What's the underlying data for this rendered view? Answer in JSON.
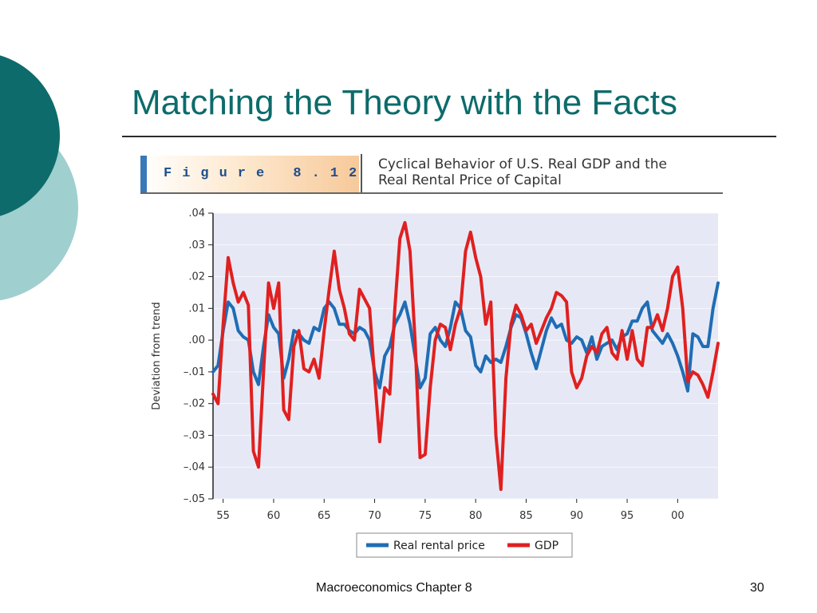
{
  "slide": {
    "title": "Matching the Theory with the Facts",
    "footer": "Macroeconomics Chapter 8",
    "page_number": "30"
  },
  "figure": {
    "label": "Figure 8.12",
    "caption_line1": "Cyclical Behavior of U.S. Real GDP and the",
    "caption_line2": "Real Rental Price of Capital"
  },
  "colors": {
    "title": "#0d6b6b",
    "circle_dark": "#0d6b6b",
    "circle_light": "#9fcfcf",
    "plot_bg": "#e6e9f5",
    "rental": "#1f6db5",
    "gdp": "#e02020"
  },
  "chart_data": {
    "type": "line",
    "ylabel": "Deviation from trend",
    "ylim": [
      -0.05,
      0.04
    ],
    "xlim": [
      1954,
      2004
    ],
    "yticks": [
      {
        "v": 0.04,
        "label": ".04"
      },
      {
        "v": 0.03,
        "label": ".03"
      },
      {
        "v": 0.02,
        "label": ".02"
      },
      {
        "v": 0.01,
        "label": ".01"
      },
      {
        "v": 0.0,
        "label": ".00"
      },
      {
        "v": -0.01,
        "label": "–.01"
      },
      {
        "v": -0.02,
        "label": "–.02"
      },
      {
        "v": -0.03,
        "label": "–.03"
      },
      {
        "v": -0.04,
        "label": "–.04"
      },
      {
        "v": -0.05,
        "label": "–.05"
      }
    ],
    "xticks": [
      {
        "v": 1955,
        "label": "55"
      },
      {
        "v": 1960,
        "label": "60"
      },
      {
        "v": 1965,
        "label": "65"
      },
      {
        "v": 1970,
        "label": "70"
      },
      {
        "v": 1975,
        "label": "75"
      },
      {
        "v": 1980,
        "label": "80"
      },
      {
        "v": 1985,
        "label": "85"
      },
      {
        "v": 1990,
        "label": "90"
      },
      {
        "v": 1995,
        "label": "95"
      },
      {
        "v": 2000,
        "label": "00"
      }
    ],
    "legend_position": "bottom",
    "series": [
      {
        "name": "Real rental price",
        "x": [
          1954.0,
          1954.5,
          1955.0,
          1955.5,
          1956.0,
          1956.5,
          1957.0,
          1957.5,
          1958.0,
          1958.5,
          1959.0,
          1959.5,
          1960.0,
          1960.5,
          1961.0,
          1961.5,
          1962.0,
          1962.5,
          1963.0,
          1963.5,
          1964.0,
          1964.5,
          1965.0,
          1965.5,
          1966.0,
          1966.5,
          1967.0,
          1967.5,
          1968.0,
          1968.5,
          1969.0,
          1969.5,
          1970.0,
          1970.5,
          1971.0,
          1971.5,
          1972.0,
          1972.5,
          1973.0,
          1973.5,
          1974.0,
          1974.5,
          1975.0,
          1975.5,
          1976.0,
          1976.5,
          1977.0,
          1977.5,
          1978.0,
          1978.5,
          1979.0,
          1979.5,
          1980.0,
          1980.5,
          1981.0,
          1981.5,
          1982.0,
          1982.5,
          1983.0,
          1983.5,
          1984.0,
          1984.5,
          1985.0,
          1985.5,
          1986.0,
          1986.5,
          1987.0,
          1987.5,
          1988.0,
          1988.5,
          1989.0,
          1989.5,
          1990.0,
          1990.5,
          1991.0,
          1991.5,
          1992.0,
          1992.5,
          1993.0,
          1993.5,
          1994.0,
          1994.5,
          1995.0,
          1995.5,
          1996.0,
          1996.5,
          1997.0,
          1997.5,
          1998.0,
          1998.5,
          1999.0,
          1999.5,
          2000.0,
          2000.5,
          2001.0,
          2001.5,
          2002.0,
          2002.5,
          2003.0,
          2003.5,
          2004.0
        ],
        "y": [
          -0.01,
          -0.008,
          0.003,
          0.012,
          0.01,
          0.003,
          0.001,
          0.0,
          -0.01,
          -0.014,
          -0.002,
          0.008,
          0.004,
          0.002,
          -0.012,
          -0.006,
          0.003,
          0.002,
          0.0,
          -0.001,
          0.004,
          0.003,
          0.01,
          0.012,
          0.01,
          0.005,
          0.005,
          0.003,
          0.002,
          0.004,
          0.003,
          0.0,
          -0.01,
          -0.015,
          -0.005,
          -0.002,
          0.005,
          0.008,
          0.012,
          0.005,
          -0.005,
          -0.015,
          -0.012,
          0.002,
          0.004,
          0.0,
          -0.002,
          0.004,
          0.012,
          0.01,
          0.003,
          0.001,
          -0.008,
          -0.01,
          -0.005,
          -0.007,
          -0.006,
          -0.007,
          -0.002,
          0.004,
          0.008,
          0.007,
          0.002,
          -0.004,
          -0.009,
          -0.003,
          0.003,
          0.007,
          0.004,
          0.005,
          0.0,
          -0.001,
          0.001,
          0.0,
          -0.004,
          0.001,
          -0.006,
          -0.002,
          -0.001,
          0.0,
          -0.003,
          0.001,
          0.002,
          0.006,
          0.006,
          0.01,
          0.012,
          0.003,
          0.001,
          -0.001,
          0.002,
          -0.001,
          -0.005,
          -0.01,
          -0.016,
          0.002,
          0.001,
          -0.002,
          -0.002,
          0.01,
          0.018
        ]
      },
      {
        "name": "GDP",
        "x": [
          1954.0,
          1954.5,
          1955.0,
          1955.5,
          1956.0,
          1956.5,
          1957.0,
          1957.5,
          1958.0,
          1958.5,
          1959.0,
          1959.5,
          1960.0,
          1960.5,
          1961.0,
          1961.5,
          1962.0,
          1962.5,
          1963.0,
          1963.5,
          1964.0,
          1964.5,
          1965.0,
          1965.5,
          1966.0,
          1966.5,
          1967.0,
          1967.5,
          1968.0,
          1968.5,
          1969.0,
          1969.5,
          1970.0,
          1970.5,
          1971.0,
          1971.5,
          1972.0,
          1972.5,
          1973.0,
          1973.5,
          1974.0,
          1974.5,
          1975.0,
          1975.5,
          1976.0,
          1976.5,
          1977.0,
          1977.5,
          1978.0,
          1978.5,
          1979.0,
          1979.5,
          1980.0,
          1980.5,
          1981.0,
          1981.5,
          1982.0,
          1982.5,
          1983.0,
          1983.5,
          1984.0,
          1984.5,
          1985.0,
          1985.5,
          1986.0,
          1986.5,
          1987.0,
          1987.5,
          1988.0,
          1988.5,
          1989.0,
          1989.5,
          1990.0,
          1990.5,
          1991.0,
          1991.5,
          1992.0,
          1992.5,
          1993.0,
          1993.5,
          1994.0,
          1994.5,
          1995.0,
          1995.5,
          1996.0,
          1996.5,
          1997.0,
          1997.5,
          1998.0,
          1998.5,
          1999.0,
          1999.5,
          2000.0,
          2000.5,
          2001.0,
          2001.5,
          2002.0,
          2002.5,
          2003.0,
          2003.5,
          2004.0
        ],
        "y": [
          -0.017,
          -0.02,
          0.005,
          0.026,
          0.018,
          0.012,
          0.015,
          0.011,
          -0.035,
          -0.04,
          -0.01,
          0.018,
          0.01,
          0.018,
          -0.022,
          -0.025,
          -0.002,
          0.003,
          -0.009,
          -0.01,
          -0.006,
          -0.012,
          0.003,
          0.016,
          0.028,
          0.016,
          0.01,
          0.002,
          0.0,
          0.016,
          0.013,
          0.01,
          -0.012,
          -0.032,
          -0.015,
          -0.017,
          0.01,
          0.032,
          0.037,
          0.028,
          0.0,
          -0.037,
          -0.036,
          -0.015,
          0.0,
          0.005,
          0.004,
          -0.003,
          0.005,
          0.01,
          0.028,
          0.034,
          0.026,
          0.02,
          0.005,
          0.012,
          -0.03,
          -0.047,
          -0.012,
          0.005,
          0.011,
          0.008,
          0.003,
          0.005,
          -0.001,
          0.003,
          0.007,
          0.01,
          0.015,
          0.014,
          0.012,
          -0.01,
          -0.015,
          -0.012,
          -0.005,
          -0.002,
          -0.004,
          0.002,
          0.004,
          -0.004,
          -0.006,
          0.003,
          -0.006,
          0.003,
          -0.006,
          -0.008,
          0.004,
          0.004,
          0.008,
          0.003,
          0.01,
          0.02,
          0.023,
          0.01,
          -0.013,
          -0.01,
          -0.011,
          -0.014,
          -0.018,
          -0.01,
          -0.001
        ]
      }
    ]
  }
}
